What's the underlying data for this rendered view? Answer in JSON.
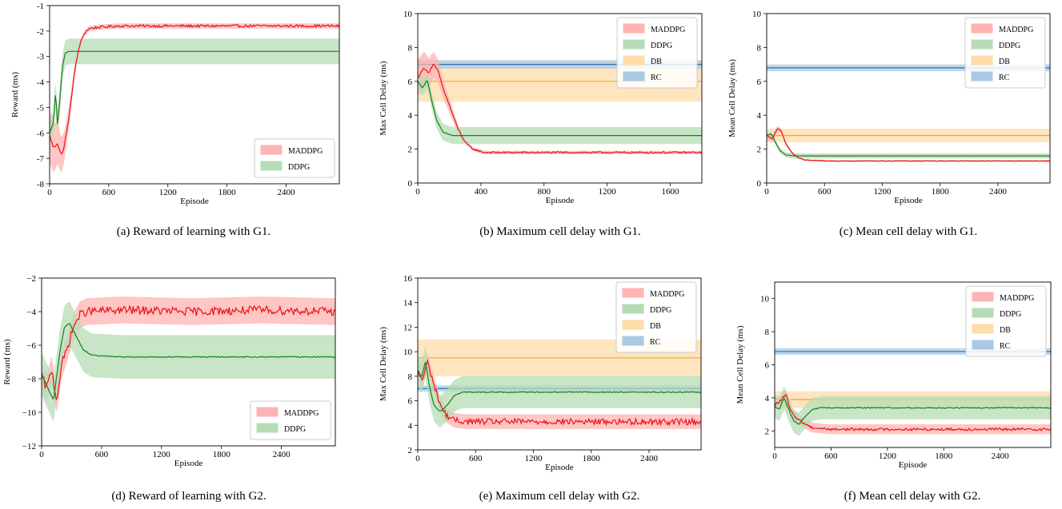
{
  "colors": {
    "maddpg": "#ee1111",
    "maddpg_band": "#ffb3b3",
    "ddpg": "#148214",
    "ddpg_band": "#b5dcb5",
    "db": "#f5a623",
    "db_band": "#ffdca8",
    "rc": "#2a6fad",
    "rc_band": "#a9c9e4"
  },
  "chart_data": [
    {
      "id": "a",
      "type": "line",
      "caption": "(a) Reward of learning with G1.",
      "xlabel": "Episode",
      "ylabel": "Reward (ms)",
      "xlim": [
        0,
        2940
      ],
      "ylim": [
        -8,
        -1
      ],
      "xticks": [
        0,
        600,
        1200,
        1800,
        2400
      ],
      "xtick_labels": [
        "0",
        "600",
        "1200",
        "1800",
        "2400"
      ],
      "yticks": [
        -8,
        -7,
        -6,
        -5,
        -4,
        -3,
        -2,
        -1
      ],
      "ytick_labels": [
        "-8",
        "-7",
        "-6",
        "-5",
        "-4",
        "-3",
        "-2",
        "-1"
      ],
      "legend": [
        "MADDPG",
        "DDPG"
      ],
      "legend_loc": "lower-right",
      "series": [
        {
          "name": "MADDPG",
          "kind": "learned",
          "points": [
            [
              0,
              -6.1
            ],
            [
              40,
              -6.6
            ],
            [
              80,
              -6.4
            ],
            [
              120,
              -6.9
            ],
            [
              150,
              -6.5
            ],
            [
              200,
              -5.3
            ],
            [
              250,
              -3.7
            ],
            [
              300,
              -2.6
            ],
            [
              350,
              -2.1
            ],
            [
              400,
              -1.9
            ],
            [
              500,
              -1.85
            ],
            [
              700,
              -1.8
            ],
            [
              1200,
              -1.8
            ],
            [
              2940,
              -1.8
            ]
          ],
          "noise": 0.05,
          "band": [
            1.1,
            0.1,
            300
          ]
        },
        {
          "name": "DDPG",
          "kind": "learned",
          "points": [
            [
              0,
              -6.0
            ],
            [
              40,
              -5.6
            ],
            [
              60,
              -4.3
            ],
            [
              80,
              -5.7
            ],
            [
              100,
              -4.9
            ],
            [
              130,
              -3.4
            ],
            [
              160,
              -2.85
            ],
            [
              200,
              -2.8
            ],
            [
              2940,
              -2.8
            ]
          ],
          "noise": 0.0,
          "band": [
            0.5,
            0.5,
            200
          ]
        }
      ]
    },
    {
      "id": "b",
      "type": "line",
      "caption": "(b) Maximum cell delay with G1.",
      "xlabel": "Episode",
      "ylabel": "Max Cell Delay (ms)",
      "xlim": [
        0,
        1800
      ],
      "ylim": [
        0,
        10
      ],
      "xticks": [
        0,
        400,
        800,
        1200,
        1600
      ],
      "xtick_labels": [
        "0",
        "400",
        "800",
        "1200",
        "1600"
      ],
      "yticks": [
        0,
        2,
        4,
        6,
        8,
        10
      ],
      "ytick_labels": [
        "0",
        "2",
        "4",
        "6",
        "8",
        "10"
      ],
      "legend": [
        "MADDPG",
        "DDPG",
        "DB",
        "RC"
      ],
      "legend_loc": "upper-right",
      "series": [
        {
          "name": "MADDPG",
          "kind": "learned",
          "points": [
            [
              0,
              6.2
            ],
            [
              40,
              6.8
            ],
            [
              70,
              6.5
            ],
            [
              100,
              7.0
            ],
            [
              130,
              6.6
            ],
            [
              160,
              5.6
            ],
            [
              200,
              4.6
            ],
            [
              250,
              3.3
            ],
            [
              300,
              2.4
            ],
            [
              350,
              2.0
            ],
            [
              420,
              1.8
            ],
            [
              600,
              1.8
            ],
            [
              1800,
              1.8
            ]
          ],
          "noise": 0.05,
          "band": [
            1.1,
            0.1,
            300
          ]
        },
        {
          "name": "DDPG",
          "kind": "learned",
          "points": [
            [
              0,
              6.0
            ],
            [
              30,
              5.6
            ],
            [
              60,
              6.1
            ],
            [
              90,
              4.8
            ],
            [
              120,
              3.7
            ],
            [
              160,
              3.0
            ],
            [
              220,
              2.8
            ],
            [
              1800,
              2.8
            ]
          ],
          "noise": 0.0,
          "band": [
            0.5,
            0.5,
            200
          ]
        },
        {
          "name": "DB",
          "kind": "constant",
          "value": 6.0,
          "band": [
            1.2,
            1.2,
            0
          ]
        },
        {
          "name": "RC",
          "kind": "constant",
          "value": 7.0,
          "band": [
            0.25,
            0.25,
            0
          ]
        }
      ]
    },
    {
      "id": "c",
      "type": "line",
      "caption": "(c) Mean cell delay with G1.",
      "xlabel": "Episode",
      "ylabel": "Mean Cell Delay (ms)",
      "xlim": [
        0,
        2940
      ],
      "ylim": [
        0,
        10
      ],
      "xticks": [
        0,
        600,
        1200,
        1800,
        2400
      ],
      "xtick_labels": [
        "0",
        "600",
        "1200",
        "1800",
        "2400"
      ],
      "yticks": [
        0,
        2,
        4,
        6,
        8,
        10
      ],
      "ytick_labels": [
        "0",
        "2",
        "4",
        "6",
        "8",
        "10"
      ],
      "legend": [
        "MADDPG",
        "DDPG",
        "DB",
        "RC"
      ],
      "legend_loc": "upper-right",
      "series": [
        {
          "name": "MADDPG",
          "kind": "learned",
          "points": [
            [
              0,
              2.8
            ],
            [
              60,
              2.6
            ],
            [
              110,
              3.2
            ],
            [
              150,
              3.1
            ],
            [
              200,
              2.3
            ],
            [
              260,
              1.8
            ],
            [
              320,
              1.5
            ],
            [
              400,
              1.35
            ],
            [
              600,
              1.3
            ],
            [
              2940,
              1.3
            ]
          ],
          "noise": 0.02,
          "band": [
            0.25,
            0.05,
            300
          ]
        },
        {
          "name": "DDPG",
          "kind": "learned",
          "points": [
            [
              0,
              2.8
            ],
            [
              50,
              2.9
            ],
            [
              90,
              2.4
            ],
            [
              140,
              1.9
            ],
            [
              200,
              1.65
            ],
            [
              300,
              1.6
            ],
            [
              2940,
              1.6
            ]
          ],
          "noise": 0.0,
          "band": [
            0.15,
            0.15,
            200
          ]
        },
        {
          "name": "DB",
          "kind": "constant",
          "value": 2.8,
          "band": [
            0.4,
            0.4,
            0
          ]
        },
        {
          "name": "RC",
          "kind": "constant",
          "value": 6.8,
          "band": [
            0.2,
            0.2,
            0
          ]
        }
      ]
    },
    {
      "id": "d",
      "type": "line",
      "caption": "(d) Reward of learning with G2.",
      "xlabel": "Episode",
      "ylabel": "Reward (ms)",
      "xlim": [
        0,
        2940
      ],
      "ylim": [
        -12,
        -2
      ],
      "xticks": [
        0,
        600,
        1200,
        1800,
        2400
      ],
      "xtick_labels": [
        "0",
        "600",
        "1200",
        "1800",
        "2400"
      ],
      "yticks": [
        -12,
        -10,
        -8,
        -6,
        -4,
        -2
      ],
      "ytick_labels": [
        "−12",
        "−10",
        "−8",
        "−6",
        "−4",
        "−2"
      ],
      "legend": [
        "MADDPG",
        "DDPG"
      ],
      "legend_loc": "lower-right",
      "series": [
        {
          "name": "MADDPG",
          "kind": "learned",
          "points": [
            [
              0,
              -7.8
            ],
            [
              50,
              -8.6
            ],
            [
              100,
              -7.4
            ],
            [
              150,
              -9.3
            ],
            [
              200,
              -7.2
            ],
            [
              260,
              -6.1
            ],
            [
              320,
              -4.9
            ],
            [
              380,
              -4.2
            ],
            [
              450,
              -4.0
            ],
            [
              800,
              -3.9
            ],
            [
              1500,
              -4.0
            ],
            [
              2200,
              -3.9
            ],
            [
              2940,
              -4.0
            ]
          ],
          "noise": 0.25,
          "band": [
            0.8,
            0.8,
            300
          ]
        },
        {
          "name": "DDPG",
          "kind": "learned",
          "points": [
            [
              0,
              -7.7
            ],
            [
              60,
              -8.5
            ],
            [
              120,
              -9.3
            ],
            [
              180,
              -6.5
            ],
            [
              230,
              -4.9
            ],
            [
              280,
              -4.7
            ],
            [
              340,
              -5.4
            ],
            [
              420,
              -6.3
            ],
            [
              500,
              -6.6
            ],
            [
              800,
              -6.7
            ],
            [
              2940,
              -6.7
            ]
          ],
          "noise": 0.03,
          "band": [
            1.3,
            1.3,
            300
          ]
        }
      ]
    },
    {
      "id": "e",
      "type": "line",
      "caption": "(e) Maximum cell delay with G2.",
      "xlabel": "Episode",
      "ylabel": "Max Cell Delay (ms)",
      "xlim": [
        0,
        2940
      ],
      "ylim": [
        2,
        16
      ],
      "xticks": [
        0,
        600,
        1200,
        1800,
        2400
      ],
      "xtick_labels": [
        "0",
        "600",
        "1200",
        "1800",
        "2400"
      ],
      "yticks": [
        2,
        4,
        6,
        8,
        10,
        12,
        14,
        16
      ],
      "ytick_labels": [
        "2",
        "4",
        "6",
        "8",
        "10",
        "12",
        "14",
        "16"
      ],
      "legend": [
        "MADDPG",
        "DDPG",
        "DB",
        "RC"
      ],
      "legend_loc": "upper-right",
      "series": [
        {
          "name": "MADDPG",
          "kind": "learned",
          "points": [
            [
              0,
              8.3
            ],
            [
              50,
              7.7
            ],
            [
              100,
              9.2
            ],
            [
              150,
              7.8
            ],
            [
              200,
              6.5
            ],
            [
              250,
              5.4
            ],
            [
              300,
              4.8
            ],
            [
              380,
              4.4
            ],
            [
              500,
              4.3
            ],
            [
              2940,
              4.3
            ]
          ],
          "noise": 0.25,
          "band": [
            0.7,
            0.6,
            300
          ]
        },
        {
          "name": "DDPG",
          "kind": "learned",
          "points": [
            [
              0,
              8.5
            ],
            [
              40,
              7.9
            ],
            [
              80,
              9.2
            ],
            [
              120,
              7.2
            ],
            [
              170,
              5.6
            ],
            [
              230,
              5.1
            ],
            [
              300,
              5.6
            ],
            [
              380,
              6.4
            ],
            [
              460,
              6.7
            ],
            [
              2940,
              6.7
            ]
          ],
          "noise": 0.04,
          "band": [
            1.3,
            1.3,
            300
          ]
        },
        {
          "name": "DB",
          "kind": "constant",
          "value": 9.5,
          "band": [
            1.5,
            1.5,
            0
          ]
        },
        {
          "name": "RC",
          "kind": "constant",
          "value": 7.0,
          "band": [
            0.25,
            0.25,
            0
          ]
        }
      ]
    },
    {
      "id": "f",
      "type": "line",
      "caption": "(f) Mean cell delay with G2.",
      "xlabel": "Episode",
      "ylabel": "Mean Cell Delay (ms)",
      "xlim": [
        0,
        2940
      ],
      "ylim": [
        1,
        11
      ],
      "xticks": [
        0,
        600,
        1200,
        1800,
        2400
      ],
      "xtick_labels": [
        "0",
        "600",
        "1200",
        "1800",
        "2400"
      ],
      "yticks": [
        2,
        4,
        6,
        8,
        10
      ],
      "ytick_labels": [
        "2",
        "4",
        "6",
        "8",
        "10"
      ],
      "legend": [
        "MADDPG",
        "DDPG",
        "DB",
        "RC"
      ],
      "legend_loc": "upper-right",
      "series": [
        {
          "name": "MADDPG",
          "kind": "learned",
          "points": [
            [
              0,
              3.6
            ],
            [
              60,
              3.8
            ],
            [
              120,
              4.2
            ],
            [
              170,
              3.2
            ],
            [
              230,
              2.8
            ],
            [
              300,
              2.5
            ],
            [
              400,
              2.2
            ],
            [
              600,
              2.1
            ],
            [
              2940,
              2.1
            ]
          ],
          "noise": 0.08,
          "band": [
            0.35,
            0.3,
            300
          ]
        },
        {
          "name": "DDPG",
          "kind": "learned",
          "points": [
            [
              0,
              3.5
            ],
            [
              50,
              3.3
            ],
            [
              100,
              4.0
            ],
            [
              150,
              3.3
            ],
            [
              200,
              2.6
            ],
            [
              260,
              2.4
            ],
            [
              330,
              2.9
            ],
            [
              400,
              3.3
            ],
            [
              500,
              3.4
            ],
            [
              2940,
              3.4
            ]
          ],
          "noise": 0.03,
          "band": [
            0.7,
            0.7,
            300
          ]
        },
        {
          "name": "DB",
          "kind": "constant",
          "value": 3.9,
          "band": [
            0.5,
            0.5,
            0
          ]
        },
        {
          "name": "RC",
          "kind": "constant",
          "value": 6.8,
          "band": [
            0.2,
            0.2,
            0
          ]
        }
      ]
    }
  ]
}
